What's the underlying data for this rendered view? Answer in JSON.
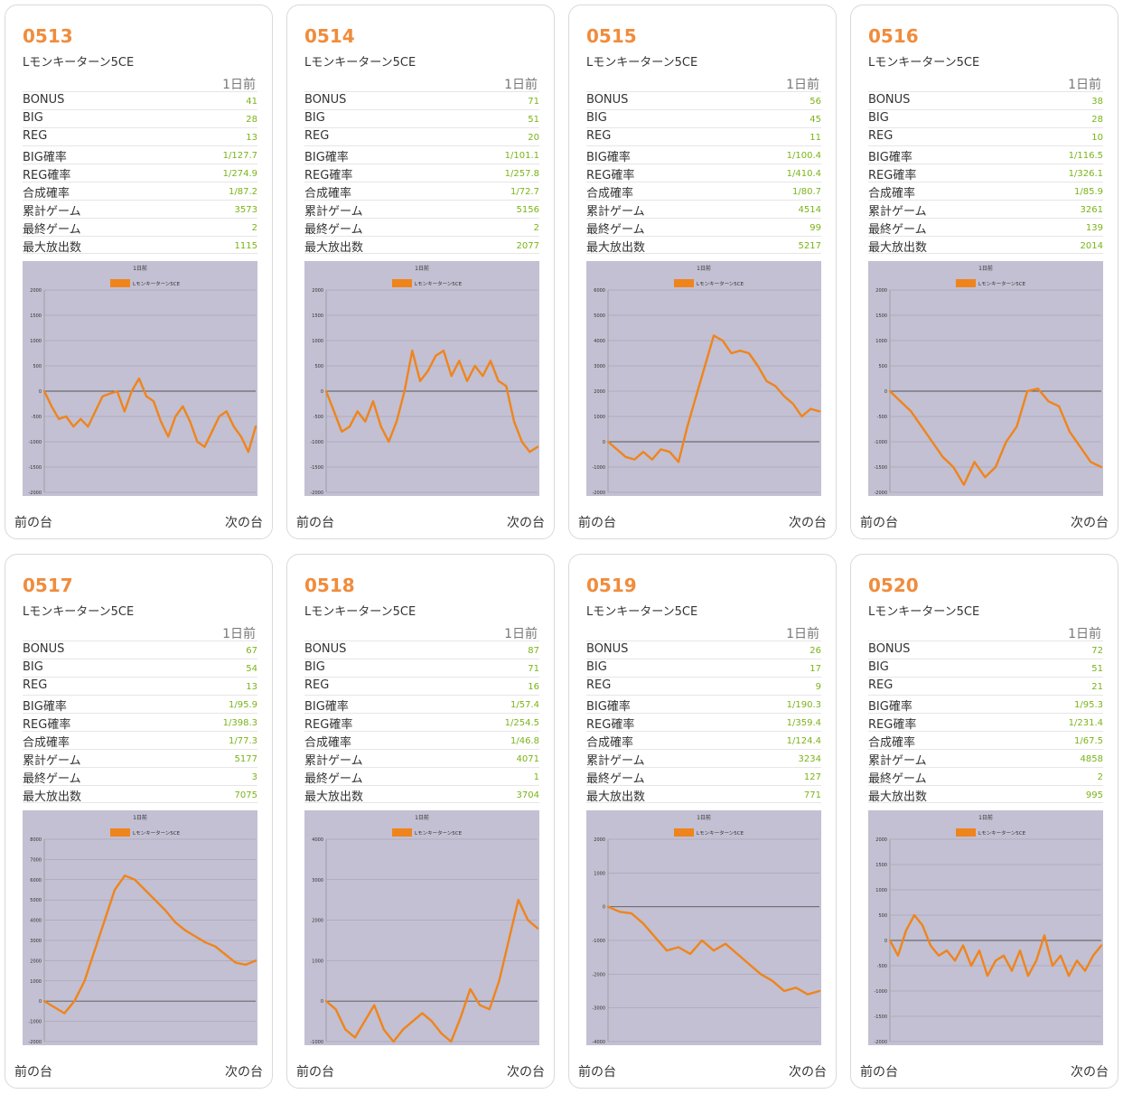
{
  "header_label": "1日前",
  "prev_label": "前の台",
  "next_label": "次の台",
  "stat_labels": [
    "BONUS",
    "BIG",
    "REG",
    "BIG確率",
    "REG確率",
    "合成確率",
    "累計ゲーム",
    "最終ゲーム",
    "最大放出数"
  ],
  "colors": {
    "accent": "#f08c3c",
    "value": "#7ab317",
    "chart_bg": "#c2c0d2",
    "line": "#f0841c"
  },
  "machines": [
    {
      "number": "0513",
      "model": "Lモンキーターン5CE",
      "stats": [
        "41",
        "28",
        "13",
        "1/127.7",
        "1/274.9",
        "1/87.2",
        "3573",
        "2",
        "1115"
      ]
    },
    {
      "number": "0514",
      "model": "Lモンキーターン5CE",
      "stats": [
        "71",
        "51",
        "20",
        "1/101.1",
        "1/257.8",
        "1/72.7",
        "5156",
        "2",
        "2077"
      ]
    },
    {
      "number": "0515",
      "model": "Lモンキーターン5CE",
      "stats": [
        "56",
        "45",
        "11",
        "1/100.4",
        "1/410.4",
        "1/80.7",
        "4514",
        "99",
        "5217"
      ]
    },
    {
      "number": "0516",
      "model": "Lモンキーターン5CE",
      "stats": [
        "38",
        "28",
        "10",
        "1/116.5",
        "1/326.1",
        "1/85.9",
        "3261",
        "139",
        "2014"
      ]
    },
    {
      "number": "0517",
      "model": "Lモンキーターン5CE",
      "stats": [
        "67",
        "54",
        "13",
        "1/95.9",
        "1/398.3",
        "1/77.3",
        "5177",
        "3",
        "7075"
      ]
    },
    {
      "number": "0518",
      "model": "Lモンキーターン5CE",
      "stats": [
        "87",
        "71",
        "16",
        "1/57.4",
        "1/254.5",
        "1/46.8",
        "4071",
        "1",
        "3704"
      ]
    },
    {
      "number": "0519",
      "model": "Lモンキーターン5CE",
      "stats": [
        "26",
        "17",
        "9",
        "1/190.3",
        "1/359.4",
        "1/124.4",
        "3234",
        "127",
        "771"
      ]
    },
    {
      "number": "0520",
      "model": "Lモンキーターン5CE",
      "stats": [
        "72",
        "51",
        "21",
        "1/95.3",
        "1/231.4",
        "1/67.5",
        "4858",
        "2",
        "995"
      ]
    }
  ],
  "chart_data": [
    {
      "type": "line",
      "title": "1日前",
      "legend": "Lモンキーターン5CE",
      "ylim": [
        -2000,
        2000
      ],
      "ticks": [
        2000,
        1500,
        1000,
        500,
        0,
        -500,
        -1000,
        -1500,
        -2000
      ],
      "series": [
        {
          "name": "Lモンキーターン5CE",
          "values": [
            0,
            -300,
            -550,
            -500,
            -700,
            -550,
            -700,
            -400,
            -100,
            -50,
            0,
            -400,
            0,
            250,
            -100,
            -200,
            -600,
            -900,
            -500,
            -300,
            -600,
            -1000,
            -1100,
            -800,
            -500,
            -400,
            -700,
            -900,
            -1200,
            -700
          ]
        }
      ]
    },
    {
      "type": "line",
      "title": "1日前",
      "legend": "Lモンキーターン5CE",
      "ylim": [
        -2000,
        2000
      ],
      "ticks": [
        2000,
        1500,
        1000,
        500,
        0,
        -500,
        -1000,
        -1500,
        -2000
      ],
      "series": [
        {
          "name": "Lモンキーターン5CE",
          "values": [
            0,
            -400,
            -800,
            -700,
            -400,
            -600,
            -200,
            -700,
            -1000,
            -600,
            0,
            800,
            200,
            400,
            700,
            800,
            300,
            600,
            200,
            500,
            300,
            600,
            200,
            100,
            -600,
            -1000,
            -1200,
            -1100
          ]
        }
      ]
    },
    {
      "type": "line",
      "title": "1日前",
      "legend": "Lモンキーターン5CE",
      "ylim": [
        -2000,
        6000
      ],
      "ticks": [
        6000,
        5000,
        4000,
        3000,
        2000,
        1000,
        0,
        -1000,
        -2000
      ],
      "series": [
        {
          "name": "Lモンキーターン5CE",
          "values": [
            0,
            -300,
            -600,
            -700,
            -400,
            -700,
            -300,
            -400,
            -800,
            600,
            1800,
            3000,
            4200,
            4000,
            3500,
            3600,
            3500,
            3000,
            2400,
            2200,
            1800,
            1500,
            1000,
            1300,
            1200
          ]
        }
      ]
    },
    {
      "type": "line",
      "title": "1日前",
      "legend": "Lモンキーターン5CE",
      "ylim": [
        -2000,
        2000
      ],
      "ticks": [
        2000,
        1500,
        1000,
        500,
        0,
        -500,
        -1000,
        -1500,
        -2000
      ],
      "series": [
        {
          "name": "Lモンキーターン5CE",
          "values": [
            0,
            -200,
            -400,
            -700,
            -1000,
            -1300,
            -1500,
            -1850,
            -1400,
            -1700,
            -1500,
            -1000,
            -700,
            0,
            50,
            -200,
            -300,
            -800,
            -1100,
            -1400,
            -1500
          ]
        }
      ]
    },
    {
      "type": "line",
      "title": "1日前",
      "legend": "Lモンキーターン5CE",
      "ylim": [
        -2000,
        8000
      ],
      "ticks": [
        8000,
        7000,
        6000,
        5000,
        4000,
        3000,
        2000,
        1000,
        0,
        -1000,
        -2000
      ],
      "series": [
        {
          "name": "Lモンキーターン5CE",
          "values": [
            0,
            -300,
            -600,
            0,
            1000,
            2500,
            4000,
            5500,
            6200,
            6000,
            5500,
            5000,
            4500,
            3900,
            3500,
            3200,
            2900,
            2700,
            2300,
            1900,
            1800,
            2000
          ]
        }
      ]
    },
    {
      "type": "line",
      "title": "1日前",
      "legend": "Lモンキーターン5CE",
      "ylim": [
        -1000,
        4000
      ],
      "ticks": [
        4000,
        3000,
        2000,
        1000,
        0,
        -1000
      ],
      "series": [
        {
          "name": "Lモンキーターン5CE",
          "values": [
            0,
            -200,
            -700,
            -900,
            -500,
            -100,
            -700,
            -1000,
            -700,
            -500,
            -300,
            -500,
            -800,
            -1000,
            -400,
            300,
            -100,
            -200,
            500,
            1500,
            2500,
            2000,
            1800
          ]
        }
      ]
    },
    {
      "type": "line",
      "title": "1日前",
      "legend": "Lモンキーターン5CE",
      "ylim": [
        -4000,
        2000
      ],
      "ticks": [
        2000,
        1000,
        0,
        -1000,
        -2000,
        -3000,
        -4000
      ],
      "series": [
        {
          "name": "Lモンキーターン5CE",
          "values": [
            0,
            -150,
            -200,
            -500,
            -900,
            -1300,
            -1200,
            -1400,
            -1000,
            -1300,
            -1100,
            -1400,
            -1700,
            -2000,
            -2200,
            -2500,
            -2400,
            -2600,
            -2500
          ]
        }
      ]
    },
    {
      "type": "line",
      "title": "1日前",
      "legend": "Lモンキーターン5CE",
      "ylim": [
        -2000,
        2000
      ],
      "ticks": [
        2000,
        1500,
        1000,
        500,
        0,
        -500,
        -1000,
        -1500,
        -2000
      ],
      "series": [
        {
          "name": "Lモンキーターン5CE",
          "values": [
            0,
            -300,
            200,
            500,
            300,
            -100,
            -300,
            -200,
            -400,
            -100,
            -500,
            -200,
            -700,
            -400,
            -300,
            -600,
            -200,
            -700,
            -400,
            100,
            -500,
            -300,
            -700,
            -400,
            -600,
            -300,
            -100
          ]
        }
      ]
    }
  ]
}
